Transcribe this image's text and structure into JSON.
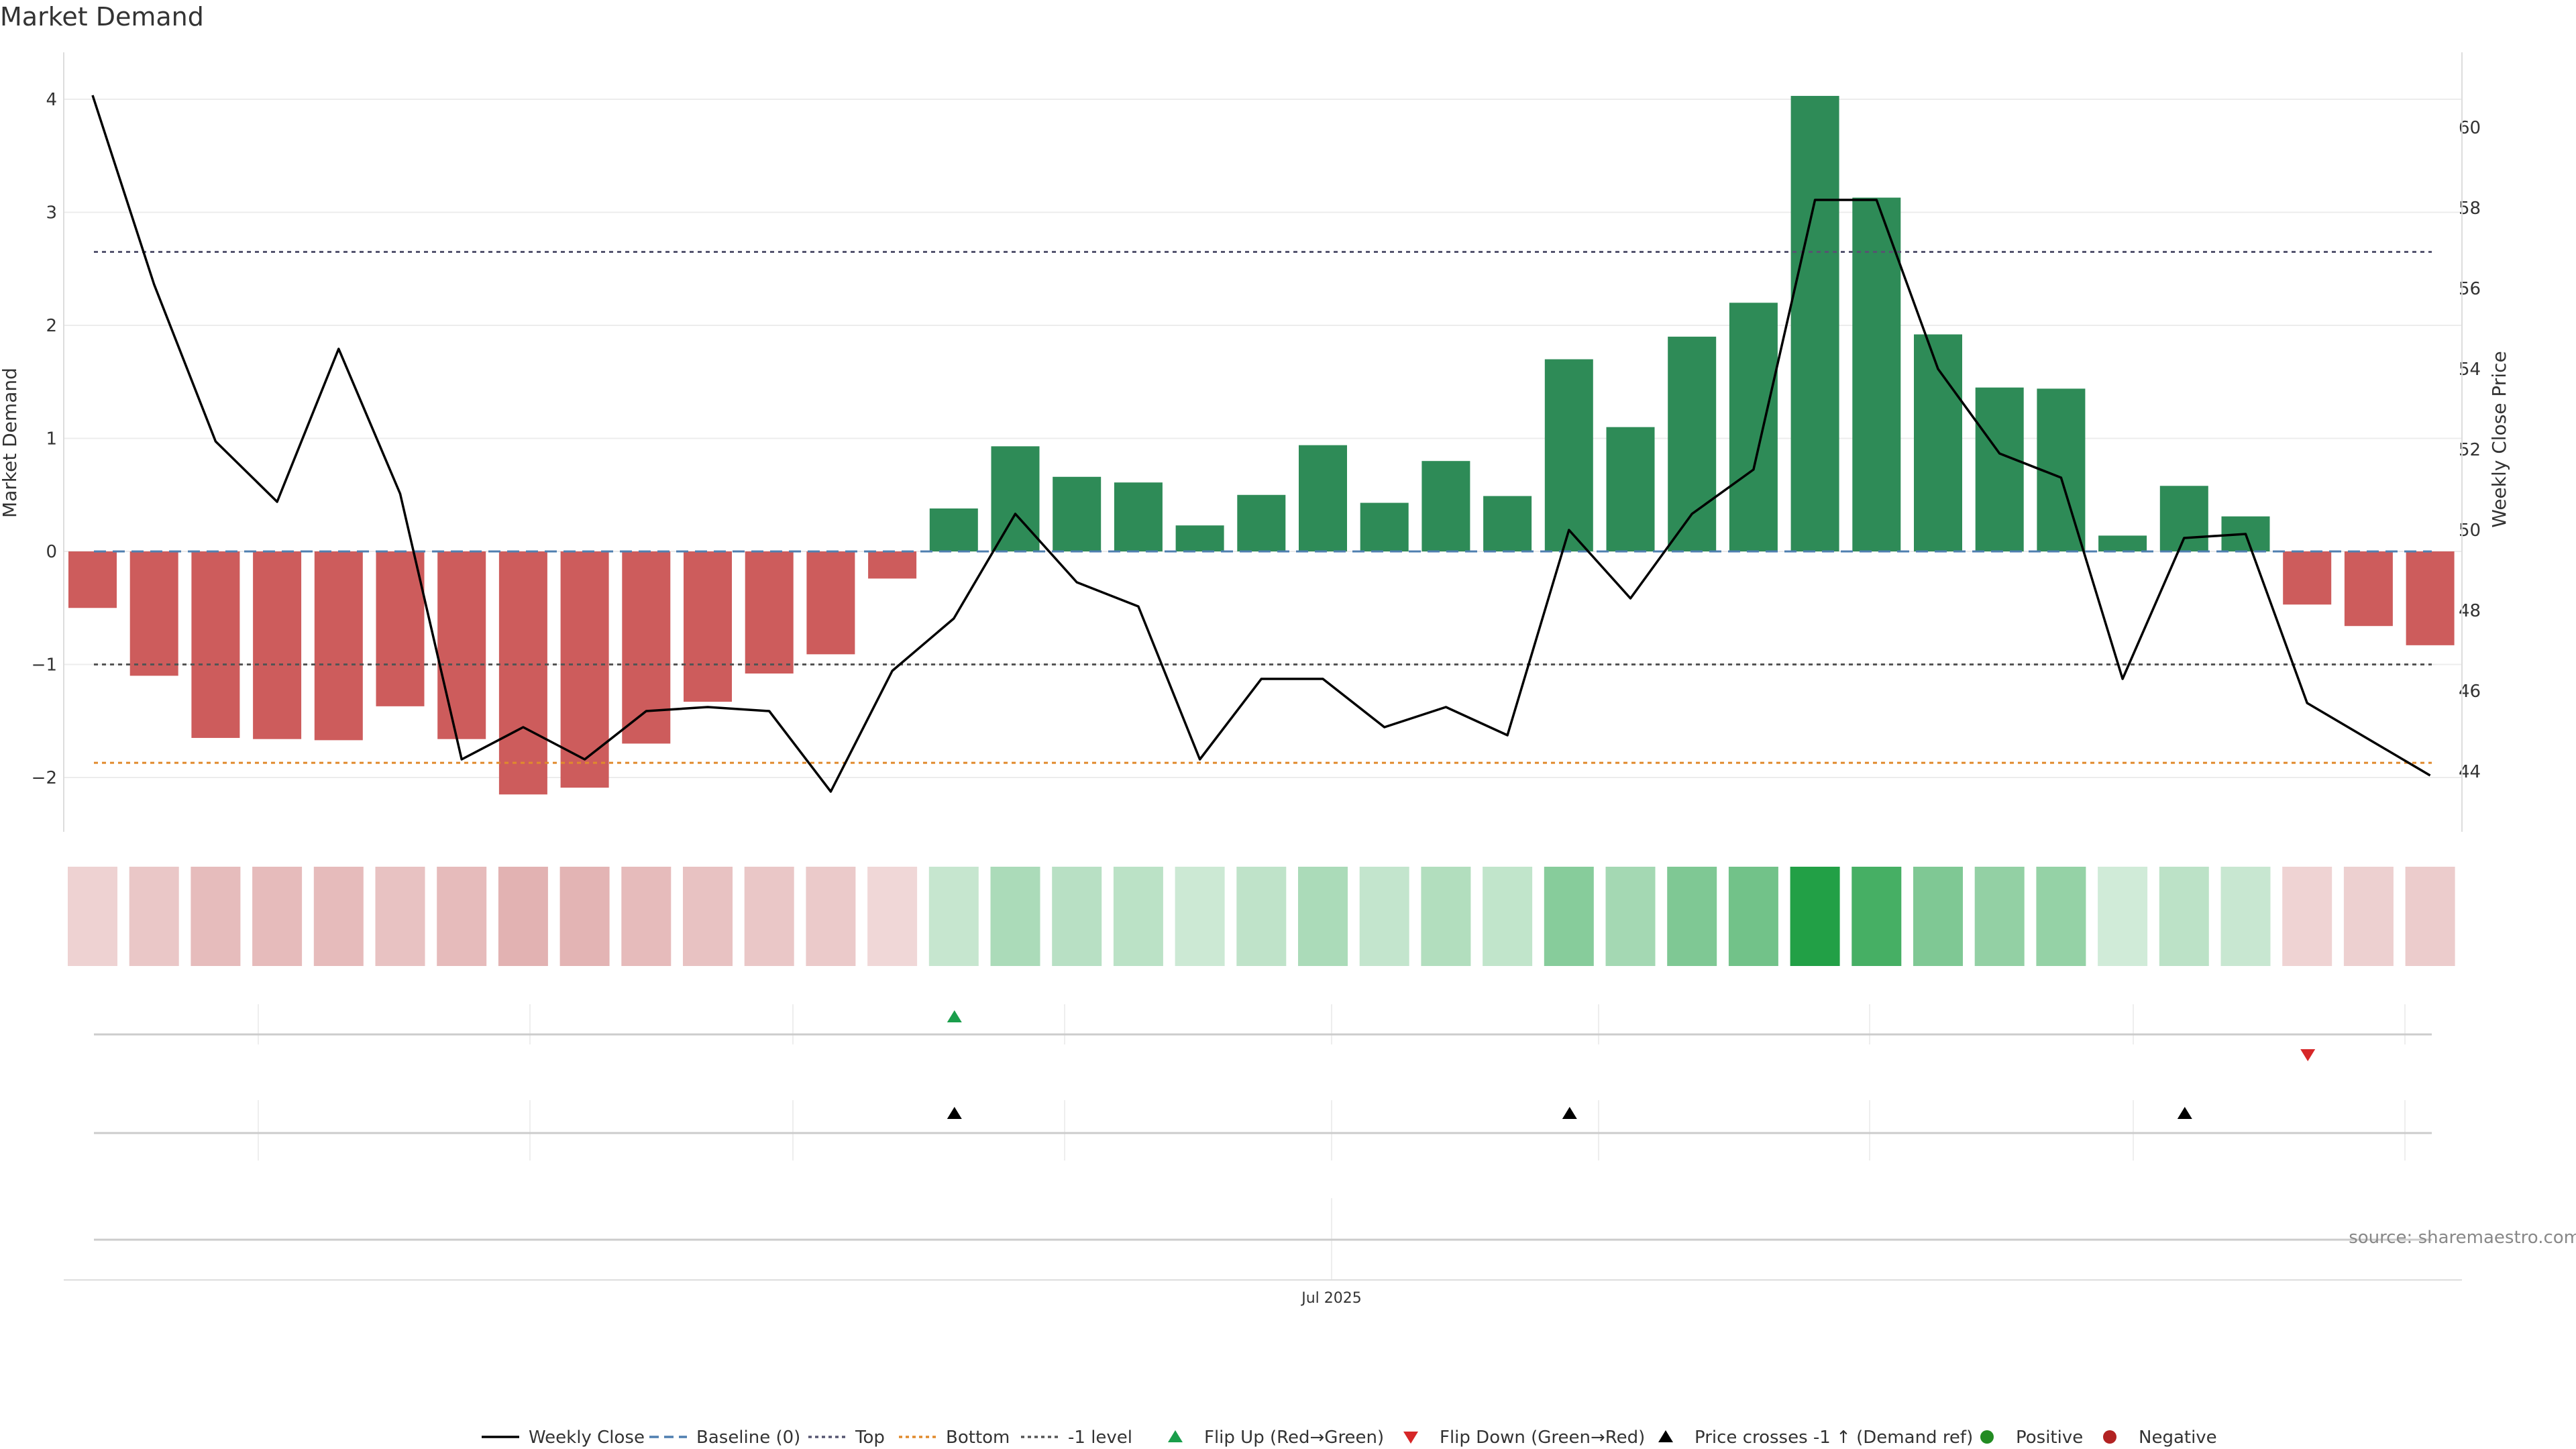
{
  "chart_data": {
    "type": "bar",
    "title": "Market Demand",
    "ylabel": "Market Demand",
    "y2label": "Weekly Close Price",
    "xtick_label": "Jul 2025",
    "source": "source: sharemaestro.com",
    "ylim": [
      -2.5,
      4.4
    ],
    "y2lim": [
      42.4,
      61.2
    ],
    "yticks": [
      -2,
      -1,
      0,
      1,
      2,
      3,
      4
    ],
    "y2ticks": [
      44,
      46,
      48,
      50,
      52,
      54,
      56,
      58,
      60
    ],
    "reference_lines": {
      "top": 2.65,
      "bottom": -1.87,
      "minus_one": -1.0,
      "baseline": 0
    },
    "demand": [
      -0.5,
      -1.1,
      -1.65,
      -1.66,
      -1.67,
      -1.37,
      -1.66,
      -2.15,
      -2.09,
      -1.7,
      -1.33,
      -1.08,
      -0.91,
      -0.24,
      0.38,
      0.93,
      0.66,
      0.61,
      0.23,
      0.5,
      0.94,
      0.43,
      0.8,
      0.49,
      1.7,
      1.1,
      1.9,
      2.2,
      4.03,
      3.13,
      1.92,
      1.45,
      1.44,
      0.14,
      0.58,
      0.31,
      -0.47,
      -0.66,
      -0.83
    ],
    "weekly_close": [
      60.8,
      56.1,
      52.2,
      50.7,
      54.5,
      50.9,
      44.3,
      45.1,
      44.3,
      45.5,
      45.6,
      45.5,
      43.5,
      46.5,
      47.8,
      50.4,
      48.7,
      48.1,
      44.3,
      46.3,
      46.3,
      45.1,
      45.6,
      44.9,
      50.0,
      48.3,
      50.4,
      51.5,
      58.2,
      58.2,
      54.0,
      51.9,
      51.3,
      46.3,
      49.8,
      49.9,
      45.7,
      44.8,
      43.9
    ],
    "flip_up_index": [
      14
    ],
    "flip_down_index": [
      36
    ],
    "price_cross_index": [
      14,
      24,
      34
    ],
    "legend": [
      "Weekly Close",
      "Baseline (0)",
      "Top",
      "Bottom",
      "-1 level",
      "Flip Up (Red→Green)",
      "Flip Down (Green→Red)",
      "Price crosses -1 ↑ (Demand ref)",
      "Positive",
      "Negative"
    ],
    "colors": {
      "positive": "#2e8b57",
      "negative": "#cd5c5c",
      "flip_up": "#1a9e4b",
      "flip_down": "#d62728",
      "line": "#000000",
      "positive_dot": "#228b22",
      "negative_dot": "#b22222"
    }
  }
}
